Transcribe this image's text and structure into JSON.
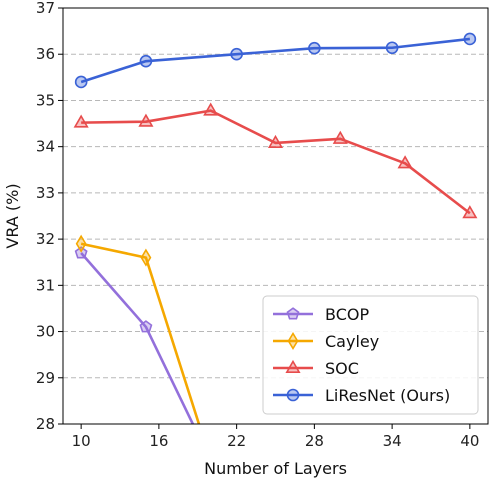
{
  "chart_data": {
    "type": "line",
    "xlabel": "Number of Layers",
    "ylabel": "VRA (%)",
    "xlim": [
      8.6,
      41.4
    ],
    "ylim": [
      28,
      37
    ],
    "xticks": [
      "10",
      "16",
      "22",
      "28",
      "34",
      "40"
    ],
    "xtick_values": [
      10,
      16,
      22,
      28,
      34,
      40
    ],
    "yticks": [
      "28",
      "29",
      "30",
      "31",
      "32",
      "33",
      "34",
      "35",
      "36",
      "37"
    ],
    "ytick_values": [
      28,
      29,
      30,
      31,
      32,
      33,
      34,
      35,
      36,
      37
    ],
    "grid": "horizontal-dashed",
    "legend_position": "bottom-right",
    "series": [
      {
        "name": "BCOP",
        "color": "#9370db",
        "marker": "pentagon",
        "x": [
          10,
          15,
          20
        ],
        "y": [
          31.7,
          30.1,
          27.2
        ]
      },
      {
        "name": "Cayley",
        "color": "#f5a800",
        "marker": "thin-diamond",
        "x": [
          10,
          15,
          20
        ],
        "y": [
          31.9,
          31.6,
          27.2
        ]
      },
      {
        "name": "SOC",
        "color": "#e74c4c",
        "marker": "triangle",
        "x": [
          10,
          15,
          20,
          25,
          30,
          35,
          40
        ],
        "y": [
          34.52,
          34.54,
          34.78,
          34.08,
          34.17,
          33.64,
          32.56
        ]
      },
      {
        "name": "LiResNet (Ours)",
        "color": "#3a62d6",
        "marker": "circle",
        "x": [
          10,
          15,
          22,
          28,
          34,
          40
        ],
        "y": [
          35.4,
          35.85,
          36.0,
          36.13,
          36.14,
          36.33
        ]
      }
    ]
  }
}
